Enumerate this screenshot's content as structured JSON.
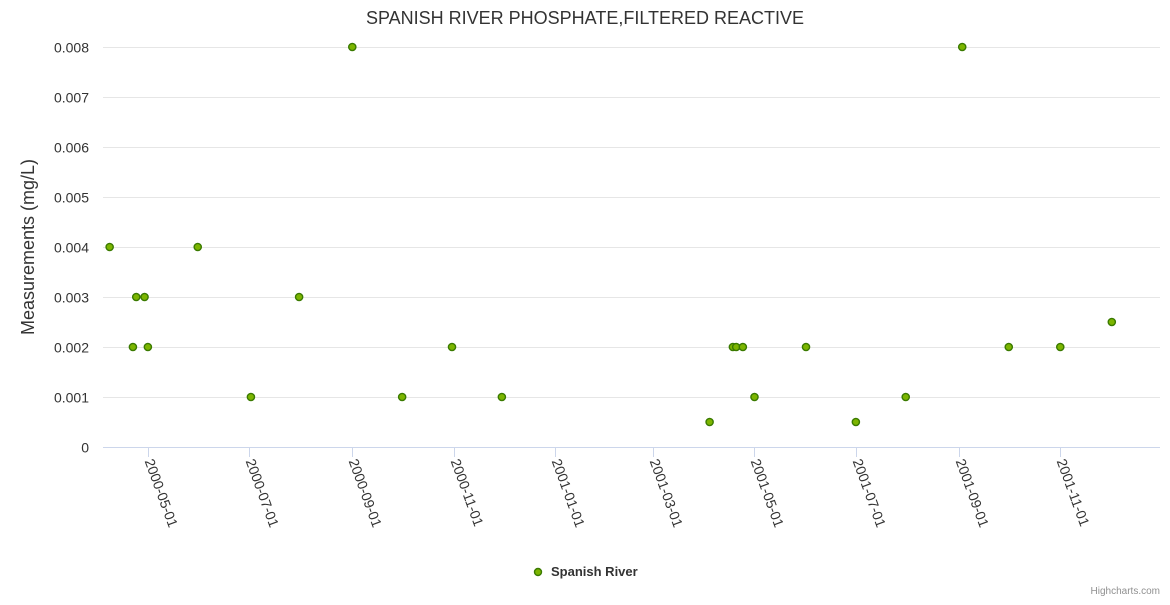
{
  "chart_data": {
    "type": "scatter",
    "title": "SPANISH RIVER PHOSPHATE,FILTERED REACTIVE",
    "xlabel": "",
    "ylabel": "Measurements (mg/L)",
    "ylim": [
      0,
      0.008
    ],
    "xlim": [
      "2000-04-04",
      "2001-12-31"
    ],
    "yticks": [
      "0",
      "0.001",
      "0.002",
      "0.003",
      "0.004",
      "0.005",
      "0.006",
      "0.007",
      "0.008"
    ],
    "xticks": [
      "2000-05-01",
      "2000-07-01",
      "2000-09-01",
      "2000-11-01",
      "2001-01-01",
      "2001-03-01",
      "2001-05-01",
      "2001-07-01",
      "2001-09-01",
      "2001-11-01"
    ],
    "grid": true,
    "legend_position": "bottom-center",
    "series": [
      {
        "name": "Spanish River",
        "color": "#7cb500",
        "marker_border": "#3a7a00",
        "points": [
          {
            "x": "2000-04-08",
            "y": 0.004
          },
          {
            "x": "2000-04-22",
            "y": 0.002
          },
          {
            "x": "2000-04-24",
            "y": 0.003
          },
          {
            "x": "2000-04-29",
            "y": 0.003
          },
          {
            "x": "2000-05-01",
            "y": 0.002
          },
          {
            "x": "2000-05-31",
            "y": 0.004
          },
          {
            "x": "2000-07-02",
            "y": 0.001
          },
          {
            "x": "2000-07-31",
            "y": 0.003
          },
          {
            "x": "2000-09-01",
            "y": 0.008
          },
          {
            "x": "2000-10-01",
            "y": 0.001
          },
          {
            "x": "2000-10-31",
            "y": 0.002
          },
          {
            "x": "2000-11-30",
            "y": 0.001
          },
          {
            "x": "2001-04-04",
            "y": 0.0005
          },
          {
            "x": "2001-04-18",
            "y": 0.002
          },
          {
            "x": "2001-04-20",
            "y": 0.002
          },
          {
            "x": "2001-04-24",
            "y": 0.002
          },
          {
            "x": "2001-05-01",
            "y": 0.001
          },
          {
            "x": "2001-06-01",
            "y": 0.002
          },
          {
            "x": "2001-07-01",
            "y": 0.0005
          },
          {
            "x": "2001-07-31",
            "y": 0.001
          },
          {
            "x": "2001-09-03",
            "y": 0.008
          },
          {
            "x": "2001-10-01",
            "y": 0.002
          },
          {
            "x": "2001-11-01",
            "y": 0.002
          },
          {
            "x": "2001-12-02",
            "y": 0.0025
          }
        ]
      }
    ]
  },
  "credits": "Highcharts.com"
}
